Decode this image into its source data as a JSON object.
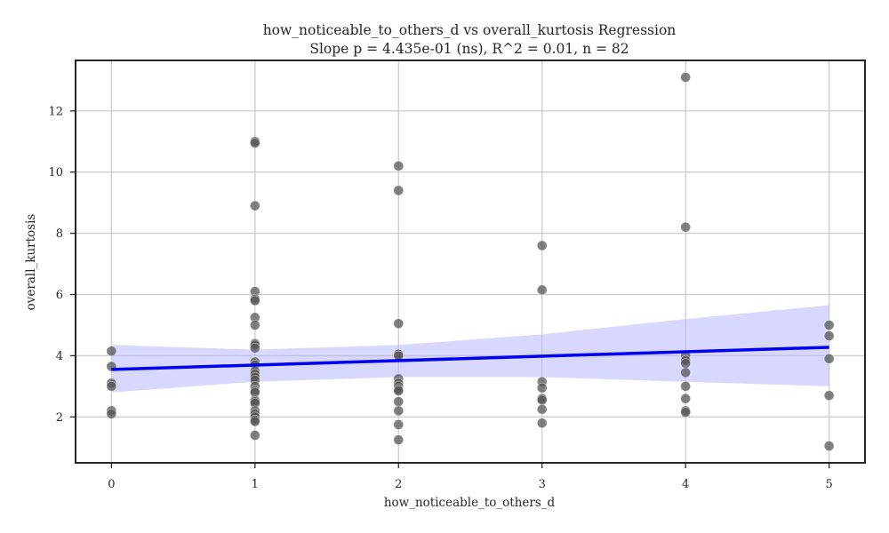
{
  "chart_data": {
    "type": "scatter",
    "title": "how_noticeable_to_others_d vs overall_kurtosis Regression",
    "subtitle": "Slope p = 4.435e-01 (ns), R^2 = 0.01, n = 82",
    "xlabel": "how_noticeable_to_others_d",
    "ylabel": "overall_kurtosis",
    "xlim": [
      -0.25,
      5.25
    ],
    "ylim": [
      0.5,
      13.65
    ],
    "xticks": [
      0,
      1,
      2,
      3,
      4,
      5
    ],
    "yticks": [
      2,
      4,
      6,
      8,
      10,
      12
    ],
    "grid": true,
    "legend": "none",
    "point_color": "#555555",
    "point_opacity": 0.75,
    "line_color": "#0000ee",
    "band_color": "#b8b8ff",
    "regression": {
      "intercept": 3.55,
      "slope": 0.145,
      "x_range": [
        0,
        5
      ],
      "ci_upper": [
        [
          0,
          4.35
        ],
        [
          1,
          4.2
        ],
        [
          2,
          4.35
        ],
        [
          3,
          4.7
        ],
        [
          4,
          5.2
        ],
        [
          5,
          5.65
        ]
      ],
      "ci_lower": [
        [
          0,
          2.8
        ],
        [
          1,
          3.15
        ],
        [
          2,
          3.3
        ],
        [
          3,
          3.3
        ],
        [
          4,
          3.15
        ],
        [
          5,
          3.0
        ]
      ]
    },
    "points": [
      [
        0,
        4.15
      ],
      [
        0,
        3.65
      ],
      [
        0,
        3.1
      ],
      [
        0,
        3.0
      ],
      [
        0,
        2.2
      ],
      [
        0,
        2.1
      ],
      [
        1,
        11.0
      ],
      [
        1,
        10.95
      ],
      [
        1,
        8.9
      ],
      [
        1,
        6.1
      ],
      [
        1,
        5.85
      ],
      [
        1,
        5.8
      ],
      [
        1,
        5.25
      ],
      [
        1,
        5.0
      ],
      [
        1,
        4.4
      ],
      [
        1,
        4.35
      ],
      [
        1,
        4.25
      ],
      [
        1,
        3.8
      ],
      [
        1,
        3.7
      ],
      [
        1,
        3.5
      ],
      [
        1,
        3.4
      ],
      [
        1,
        3.3
      ],
      [
        1,
        3.2
      ],
      [
        1,
        3.0
      ],
      [
        1,
        2.85
      ],
      [
        1,
        2.8
      ],
      [
        1,
        2.55
      ],
      [
        1,
        2.5
      ],
      [
        1,
        2.45
      ],
      [
        1,
        2.2
      ],
      [
        1,
        2.1
      ],
      [
        1,
        2.0
      ],
      [
        1,
        1.9
      ],
      [
        1,
        1.85
      ],
      [
        1,
        1.4
      ],
      [
        2,
        10.2
      ],
      [
        2,
        9.4
      ],
      [
        2,
        5.05
      ],
      [
        2,
        4.05
      ],
      [
        2,
        4.0
      ],
      [
        2,
        3.25
      ],
      [
        2,
        3.1
      ],
      [
        2,
        3.0
      ],
      [
        2,
        2.9
      ],
      [
        2,
        2.85
      ],
      [
        2,
        2.5
      ],
      [
        2,
        2.2
      ],
      [
        2,
        1.75
      ],
      [
        2,
        1.25
      ],
      [
        3,
        7.6
      ],
      [
        3,
        6.15
      ],
      [
        3,
        3.15
      ],
      [
        3,
        2.95
      ],
      [
        3,
        2.6
      ],
      [
        3,
        2.55
      ],
      [
        3,
        2.25
      ],
      [
        3,
        1.8
      ],
      [
        4,
        13.1
      ],
      [
        4,
        8.2
      ],
      [
        4,
        4.0
      ],
      [
        4,
        3.85
      ],
      [
        4,
        3.75
      ],
      [
        4,
        3.45
      ],
      [
        4,
        3.0
      ],
      [
        4,
        2.6
      ],
      [
        4,
        2.2
      ],
      [
        4,
        2.15
      ],
      [
        5,
        5.0
      ],
      [
        5,
        4.65
      ],
      [
        5,
        3.9
      ],
      [
        5,
        2.7
      ],
      [
        5,
        1.05
      ]
    ]
  }
}
